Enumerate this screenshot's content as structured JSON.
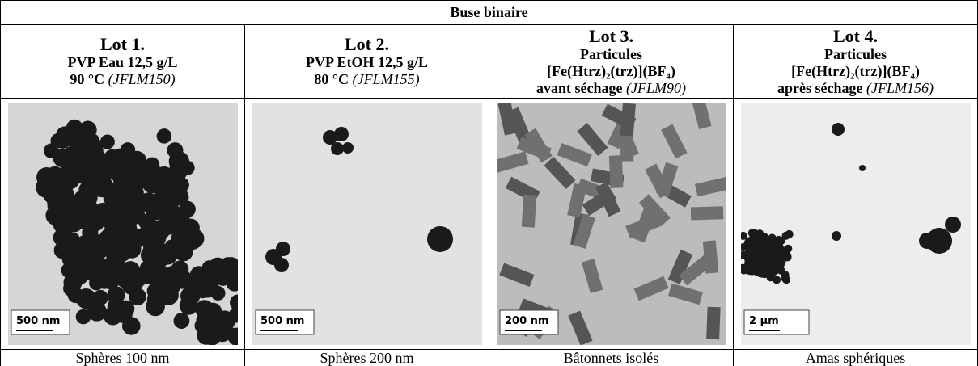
{
  "table": {
    "title": "Buse binaire",
    "columns": [
      {
        "lot": "Lot 1.",
        "lines": [
          "PVP Eau 12,5 g/L"
        ],
        "condition": "90 °C",
        "ref": "(JFLM150)",
        "scale_bar": "500 nm",
        "description": "Sphères 100 nm"
      },
      {
        "lot": "Lot 2.",
        "lines": [
          "PVP EtOH 12,5 g/L"
        ],
        "condition": "80 °C",
        "ref": "(JFLM155)",
        "scale_bar": "500 nm",
        "description": "Sphères 200 nm"
      },
      {
        "lot": "Lot 3.",
        "lines": [
          "Particules",
          "[Fe(Htrz)₂(trz)](BF₄)"
        ],
        "condition": "avant séchage",
        "ref": "(JFLM90)",
        "scale_bar": "200 nm",
        "description": "Bâtonnets isolés"
      },
      {
        "lot": "Lot 4.",
        "lines": [
          "Particules",
          "[Fe(Htrz)₂(trz)](BF₄)"
        ],
        "condition": "après séchage",
        "ref": "(JFLM156)",
        "scale_bar": "2 µm",
        "description": "Amas sphériques"
      }
    ]
  }
}
